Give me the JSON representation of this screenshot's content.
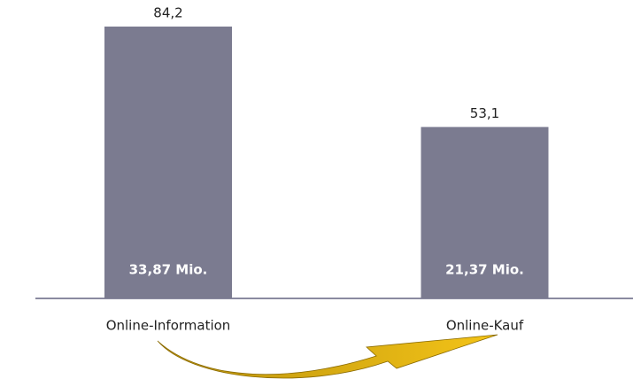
{
  "chart_data": {
    "type": "bar",
    "categories": [
      "Online-Information",
      "Online-Kauf"
    ],
    "values": [
      84.2,
      53.1
    ],
    "value_labels": [
      "84,2",
      "53,1"
    ],
    "annotations": [
      "33,87 Mio.",
      "21,37 Mio."
    ],
    "color": "#7b7b90"
  }
}
